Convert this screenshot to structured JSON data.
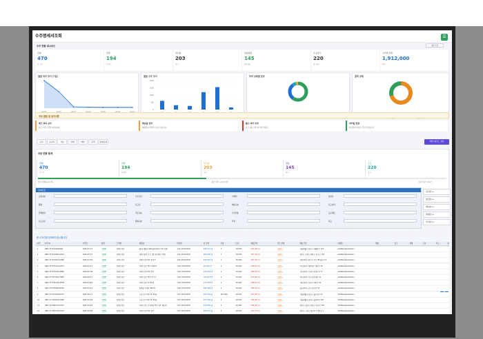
{
  "window": {
    "title": "수주명세서조회"
  },
  "header": {
    "section_title": "수주 현황 대시보드",
    "btn_refresh": "새로고침"
  },
  "kpis": [
    {
      "label": "전체",
      "value": "470",
      "sub": "총 건수",
      "color": "#1f6fd1"
    },
    {
      "label": "진행",
      "value": "194",
      "sub": "진행중",
      "color": "#2e9e5b"
    },
    {
      "label": "대기중",
      "value": "203",
      "sub": "대기",
      "color": "#333333"
    },
    {
      "label": "완료예정",
      "value": "145",
      "sub": "완료예정",
      "color": "#2e9e5b"
    },
    {
      "label": "출고대기",
      "value": "220",
      "sub": "출고대기",
      "color": "#333333"
    },
    {
      "label": "수주액 합계",
      "value": "1,912,000",
      "sub": "합계",
      "color": "#1f6fd1"
    }
  ],
  "charts": {
    "c1": {
      "title": "월별 처리 추이 (7일)",
      "x": [
        "04-01",
        "04-02",
        "04-03",
        "04-04",
        "04-05",
        "04-06",
        "04-07"
      ],
      "y": [
        100,
        60,
        5,
        4,
        3,
        3,
        3
      ],
      "ylim": [
        0,
        100
      ]
    },
    "c2": {
      "title": "월별 수주 추이",
      "categories": [
        "1월",
        "2월",
        "3월",
        "4월",
        "5월",
        "6월"
      ],
      "values": [
        600,
        300,
        250,
        1200,
        1550,
        150
      ],
      "ylim": [
        0,
        2000
      ]
    },
    "c3": {
      "title": "처리 상태별 분포",
      "legend": [
        "대기",
        "진행",
        "완료",
        "출고대기",
        "보류",
        "취소",
        "출고완료",
        "반품"
      ]
    },
    "c4": {
      "title": "품목 상태",
      "legend": [
        "출하완료",
        "출고대기"
      ]
    }
  },
  "alerts_title": "주요 알림 및 공지사항",
  "alerts": [
    {
      "title": "재고 부족 공지",
      "desc": "재고 부족 품목을 확인하세요",
      "color": "#e8a33b"
    },
    {
      "title": "배송일 임박",
      "desc": "배송일이 임박한 주문이 있습니다",
      "color": "#e8a33b"
    },
    {
      "title": "출고 처리 안내",
      "desc": "출고 대기 건을 처리해 주세요",
      "color": "#d9362b"
    },
    {
      "title": "처리일 변경",
      "desc": "처리일이 변경된 주문이 있습니다",
      "color": "#2e9e5b"
    }
  ],
  "toolbar": {
    "buttons": [
      "조회",
      "초기화",
      "저장",
      "인쇄",
      "엑셀",
      "출력",
      "상세조회"
    ],
    "right_btn": "엑셀 다운로드 설정"
  },
  "stats_title": "주문 현황 통계",
  "stats": [
    {
      "label": "전체",
      "value": "470",
      "sub": "총 수주",
      "color": "#1f6fd1"
    },
    {
      "label": "진행",
      "value": "194",
      "sub": "진행중",
      "color": "#2e9e5b"
    },
    {
      "label": "대기중",
      "value": "203",
      "sub": "대기",
      "color": "#e8a33b"
    },
    {
      "label": "완료",
      "value": "145",
      "sub": "완료",
      "color": "#7b3fb5"
    },
    {
      "label": "출고",
      "value": "220",
      "sub": "출고",
      "color": "#1aa3a3"
    }
  ],
  "progress": {
    "left": "처리 진행률 41.3%",
    "mid": "평균 처리 시간 2.3일",
    "right": "처리 완료 172건"
  },
  "form": {
    "title": "검색조건",
    "labels": [
      "조회구분",
      "수주기간",
      "거래처",
      "담당자",
      "품목",
      "출고지",
      "배송구분",
      "출고상태",
      "결제상태",
      "주문구분",
      "수주번호",
      "프로젝트",
      "출고기간",
      "품목구분",
      "부서",
      "비고"
    ]
  },
  "side_buttons": [
    "기본정보",
    "상품정보",
    "배송정보",
    "결제정보",
    "기타정보"
  ],
  "table_caption": "총 470건을 검색하여 표시합니다",
  "columns": [
    "순번",
    "수주 ID",
    "수주일",
    "상태",
    "고객명",
    "제품명",
    "연락처",
    "총 금액",
    "수량",
    "단가",
    "제품금액",
    "주문 상태",
    "배송 주소",
    "이메일",
    "배송",
    "출고",
    "결제",
    "구분",
    "비고",
    "합계"
  ],
  "rows": [
    {
      "no": "1",
      "id": "ORD-177512208-964",
      "date": "2025-03-07",
      "status": "진행중",
      "cust": "하이트진로",
      "prod": "Java 개발자 SW(클라이언트 3개 포함)",
      "tel": "010-1234-5678",
      "amt": "949,777 원",
      "qty": "3",
      "price": "10,000",
      "pamt": "505,290 원",
      "state": "출고",
      "addr": "서울특별시 강남구 테헤란로 123",
      "mail": "dasfkan@example.c"
    },
    {
      "no": "2",
      "id": "ORD-177512844-2644",
      "date": "2025-05-07",
      "status": "진행중",
      "cust": "하이트진로",
      "prod": "데이터분석 프로그램 (라이센스 5개)",
      "tel": "010-1234-5678",
      "amt": "969,660 원",
      "qty": "2",
      "price": "10,000",
      "pamt": "355,790 원",
      "state": "출고",
      "addr": "경기도 수원시 영통구 광교로 145",
      "mail": "dasfkan@example.c"
    },
    {
      "no": "3",
      "id": "ORD-177514254-9086",
      "date": "2025-04-05",
      "status": "진행중",
      "cust": "하이트진로",
      "prod": "하이트진로맥주 캔 2.5",
      "tel": "010-1234-5678",
      "amt": "108,970 원",
      "qty": "1",
      "price": "15,000",
      "pamt": "402,300 원",
      "state": "출고",
      "addr": "인천광역시 연수구 송도 88 올림 2층",
      "mail": "dasfkan@example.c"
    },
    {
      "no": "4",
      "id": "ORD-177513154-2223",
      "date": "2025-04-27",
      "status": "진행중",
      "cust": "하이트진로",
      "prod": "하이트진로 맥주 500ml",
      "tel": "010-1234-5678",
      "amt": "99,456 원",
      "qty": "2",
      "price": "10,000",
      "pamt": "449,810 원",
      "state": "출고",
      "addr": "부산광역시 해운대구 센텀로 45",
      "mail": "dasfkan@example.c"
    },
    {
      "no": "5",
      "id": "ORD-177513201-9898",
      "date": "2025-05-08",
      "status": "진행중",
      "cust": "하이트진로",
      "prod": "하이트진로맥주 캔 2",
      "tel": "010-1234-5678",
      "amt": "101,654 원",
      "qty": "2",
      "price": "13,000",
      "pamt": "465,590 원",
      "state": "출고",
      "addr": "대구광역시 수성구 동대구로 77",
      "mail": "dasfkan@example.c"
    },
    {
      "no": "6",
      "id": "ORD-177477692-7983",
      "date": "2025-06-27",
      "status": "진행중",
      "cust": "하이트진로",
      "prod": "하이트진로 맥주 병 1.8",
      "tel": "010-1234-5678",
      "amt": "784,613 원",
      "qty": "2",
      "price": "13,200",
      "pamt": "413,800 원",
      "state": "출고",
      "addr": "광주광역시 서구 상무대로 12",
      "mail": "dasfkan@example.c"
    },
    {
      "no": "7",
      "id": "ORD-177531036-4558",
      "date": "2025-04-29",
      "status": "진행중",
      "cust": "하이트진로",
      "prod": "하이트진로 2L 8mg",
      "tel": "010-1234-5678",
      "amt": "127,858 원",
      "qty": "2",
      "price": "15,500",
      "pamt": "438,810 원",
      "state": "출고",
      "addr": "대전광역시 유성구 대학로 99",
      "mail": "dasfkan@example.c"
    },
    {
      "no": "8",
      "id": "ORD-177478280-8760",
      "date": "2025-04-21",
      "status": "진행중",
      "cust": "하이트진로",
      "prod": "참이슬 후레쉬 360ml",
      "tel": "010-1234-5678",
      "amt": "882,584 원",
      "qty": "3",
      "price": "10,000",
      "pamt": "388,540 원",
      "state": "출고",
      "addr": "울산광역시 남구 삼산로 33",
      "mail": "dasfkan@example.c"
    },
    {
      "no": "9",
      "id": "ORD-177479290-9753",
      "date": "2025-06-11",
      "status": "진행중",
      "cust": "하이트진로",
      "prod": "고급 진로 맥주 2L 8mg",
      "tel": "010-1234-5678",
      "amt": "182,704 원",
      "qty": "46,7400",
      "price": "10,000",
      "pamt": "427,000 원",
      "state": "출고",
      "addr": "서울특별시 마포구 월드컵로 21",
      "mail": "dasfkan@example.c"
    },
    {
      "no": "10",
      "id": "ORD-177449540-1998",
      "date": "2025-03-16",
      "status": "진행중",
      "cust": "하이트진로",
      "prod": "고급 진로 맥주 2L 8mg",
      "tel": "010-1234-5678",
      "amt": "227,260 원",
      "qty": "3",
      "price": "10,000",
      "pamt": "309,900 원",
      "state": "출고",
      "addr": "서울특별시 송파구 올림픽로 300",
      "mail": "dasfkan@example.c"
    },
    {
      "no": "11",
      "id": "ORD-177482760-5552",
      "date": "2025-04-04",
      "status": "진행중",
      "cust": "하이트진로",
      "prod": "하이트진로 프리미엄 맥주 세트 패키지",
      "tel": "010-1234-5678",
      "amt": "128,580 원",
      "qty": "4",
      "price": "12,000",
      "pamt": "458,000 원",
      "state": "출고",
      "addr": "경기도 성남시 분당구 판교로 235",
      "mail": "dasfkan@example.c"
    },
    {
      "no": "12",
      "id": "ORD-177483748-1414",
      "date": "2025-04-08",
      "status": "진행중",
      "cust": "하이트진로",
      "prod": "하이트진로맥주 캔 3",
      "tel": "010-1234-5678",
      "amt": "849,223 원",
      "qty": "3",
      "price": "10,000",
      "pamt": "312,110 원",
      "state": "출고",
      "addr": "경기도 고양시 일산동구 중앙로 1",
      "mail": "dasfkan@example.c"
    }
  ]
}
